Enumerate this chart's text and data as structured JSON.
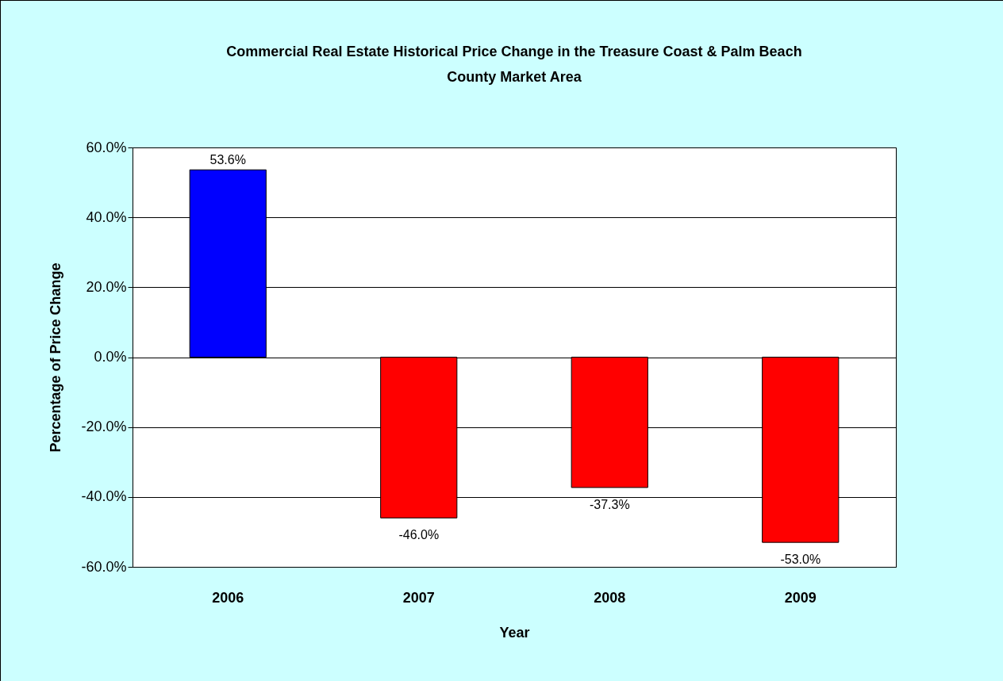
{
  "chart_data": {
    "type": "bar",
    "title": "Commercial Real Estate Historical Price Change in the Treasure Coast & Palm Beach County Market Area",
    "xlabel": "Year",
    "ylabel": "Percentage of Price Change",
    "categories": [
      "2006",
      "2007",
      "2008",
      "2009"
    ],
    "values": [
      53.6,
      -46.0,
      -37.3,
      -53.0
    ],
    "colors": [
      "#0000ff",
      "#ff0000",
      "#ff0000",
      "#ff0000"
    ],
    "value_labels": [
      "53.6%",
      "-46.0%",
      "-37.3%",
      "-53.0%"
    ],
    "ylim": [
      -60,
      60
    ],
    "yticks": [
      {
        "value": -60,
        "label": "-60.0%"
      },
      {
        "value": -40,
        "label": "-40.0%"
      },
      {
        "value": -20,
        "label": "-20.0%"
      },
      {
        "value": 0,
        "label": "0.0%"
      },
      {
        "value": 20,
        "label": "20.0%"
      },
      {
        "value": 40,
        "label": "40.0%"
      },
      {
        "value": 60,
        "label": "60.0%"
      }
    ],
    "grid": "y"
  }
}
